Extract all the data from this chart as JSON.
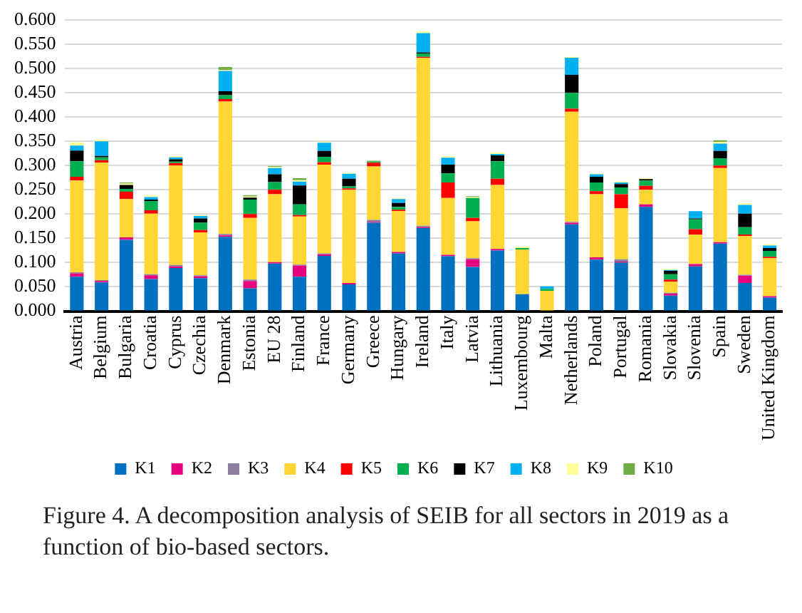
{
  "chart_data": {
    "type": "bar",
    "stacked": true,
    "grid": "y",
    "legend": "bottom",
    "categories": [
      "Austria",
      "Belgium",
      "Bulgaria",
      "Croatia",
      "Cyprus",
      "Czechia",
      "Denmark",
      "Estonia",
      "EU 28",
      "Finland",
      "France",
      "Germany",
      "Greece",
      "Hungary",
      "Ireland",
      "Italy",
      "Latvia",
      "Lithuania",
      "Luxembourg",
      "Malta",
      "Netherlands",
      "Poland",
      "Portugal",
      "Romania",
      "Slovakia",
      "Slovenia",
      "Spain",
      "Sweden",
      "United Kingdom"
    ],
    "ylim": [
      0,
      0.6
    ],
    "yticks": [
      {
        "value": 0,
        "label": "0.000"
      },
      {
        "value": 0.05,
        "label": "0.050"
      },
      {
        "value": 0.1,
        "label": "0.100"
      },
      {
        "value": 0.15,
        "label": "0.150"
      },
      {
        "value": 0.2,
        "label": "0.200"
      },
      {
        "value": 0.25,
        "label": "0.250"
      },
      {
        "value": 0.3,
        "label": "0.300"
      },
      {
        "value": 0.35,
        "label": "0.350"
      },
      {
        "value": 0.4,
        "label": "0.400"
      },
      {
        "value": 0.45,
        "label": "0.450"
      },
      {
        "value": 0.5,
        "label": "0.500"
      },
      {
        "value": 0.55,
        "label": "0.550"
      },
      {
        "value": 0.6,
        "label": "0.600"
      }
    ],
    "series": [
      {
        "name": "K1",
        "color": "#0070c0",
        "values": [
          0.071,
          0.059,
          0.147,
          0.066,
          0.089,
          0.068,
          0.153,
          0.047,
          0.098,
          0.071,
          0.114,
          0.055,
          0.182,
          0.119,
          0.171,
          0.113,
          0.091,
          0.125,
          0.035,
          0,
          0.179,
          0.106,
          0.1,
          0.215,
          0.032,
          0.092,
          0.139,
          0.058,
          0.028
        ]
      },
      {
        "name": "K2",
        "color": "#e6007e",
        "values": [
          0.007,
          0.003,
          0.005,
          0.008,
          0.003,
          0.004,
          0.003,
          0.015,
          0.003,
          0.023,
          0.003,
          0.003,
          0.002,
          0.003,
          0.002,
          0.003,
          0.016,
          0.003,
          0,
          0,
          0.003,
          0.005,
          0.002,
          0.005,
          0.004,
          0.005,
          0.003,
          0.015,
          0.003
        ]
      },
      {
        "name": "K3",
        "color": "#8c7fa0",
        "values": [
          0.002,
          0.002,
          0,
          0.002,
          0.003,
          0.002,
          0.003,
          0.003,
          0,
          0.002,
          0.002,
          0,
          0.004,
          0,
          0.003,
          0,
          0.002,
          0,
          0,
          0,
          0.002,
          0,
          0.005,
          0,
          0.002,
          0,
          0,
          0.002,
          0
        ]
      },
      {
        "name": "K4",
        "color": "#ffd633",
        "values": [
          0.189,
          0.242,
          0.079,
          0.125,
          0.205,
          0.088,
          0.273,
          0.127,
          0.14,
          0.099,
          0.183,
          0.192,
          0.11,
          0.084,
          0.346,
          0.117,
          0.076,
          0.132,
          0.092,
          0.042,
          0.227,
          0.13,
          0.105,
          0.03,
          0.023,
          0.061,
          0.153,
          0.08,
          0.078
        ]
      },
      {
        "name": "K5",
        "color": "#ff0000",
        "values": [
          0.008,
          0.005,
          0.015,
          0.007,
          0.005,
          0.005,
          0.005,
          0.008,
          0.009,
          0.003,
          0.005,
          0.003,
          0.008,
          0.003,
          0.002,
          0.032,
          0.007,
          0.013,
          0,
          0,
          0.006,
          0.006,
          0.029,
          0.008,
          0.004,
          0.011,
          0.005,
          0.003,
          0.003
        ]
      },
      {
        "name": "K6",
        "color": "#00b050",
        "values": [
          0.032,
          0.006,
          0.006,
          0.019,
          0.003,
          0.015,
          0.008,
          0.03,
          0.016,
          0.022,
          0.011,
          0.004,
          0.002,
          0.006,
          0.007,
          0.019,
          0.041,
          0.036,
          0.003,
          0.004,
          0.033,
          0.018,
          0.014,
          0.011,
          0.011,
          0.02,
          0.015,
          0.015,
          0.012
        ]
      },
      {
        "name": "K7",
        "color": "#000000",
        "values": [
          0.022,
          0.003,
          0.008,
          0.003,
          0.005,
          0.009,
          0.008,
          0.004,
          0.016,
          0.039,
          0.012,
          0.016,
          0,
          0.008,
          0.002,
          0.018,
          0,
          0.012,
          0,
          0,
          0.037,
          0.012,
          0.007,
          0.003,
          0.007,
          0.002,
          0.015,
          0.028,
          0.006
        ]
      },
      {
        "name": "K8",
        "color": "#00b0f0",
        "values": [
          0.01,
          0.03,
          0,
          0.005,
          0.004,
          0.005,
          0.042,
          0,
          0.013,
          0.008,
          0.017,
          0.01,
          0,
          0.008,
          0.04,
          0.014,
          0,
          0.003,
          0,
          0.005,
          0.035,
          0.005,
          0.003,
          0,
          0.002,
          0.015,
          0.015,
          0.018,
          0.005
        ]
      },
      {
        "name": "K9",
        "color": "#ffff99",
        "values": [
          0.007,
          0.003,
          0.003,
          0.003,
          0.002,
          0.002,
          0.002,
          0.002,
          0.002,
          0.003,
          0.002,
          0.002,
          0,
          0.002,
          0.003,
          0.003,
          0.002,
          0.003,
          0.003,
          0,
          0.002,
          0.002,
          0.002,
          0.002,
          0.002,
          0,
          0.004,
          0.003,
          0.003
        ]
      },
      {
        "name": "K10",
        "color": "#70ad47",
        "values": [
          0,
          0,
          0.002,
          0,
          0,
          0,
          0.006,
          0.003,
          0.002,
          0.004,
          0,
          0,
          0.002,
          0,
          0,
          0,
          0.002,
          0,
          0,
          0,
          0,
          0,
          0,
          0,
          0,
          0,
          0.003,
          0,
          0
        ]
      }
    ],
    "annotations": [
      "Figure 4. A decomposition analysis of SEIB for all sectors in 2019 as a function of bio-based sectors."
    ]
  }
}
